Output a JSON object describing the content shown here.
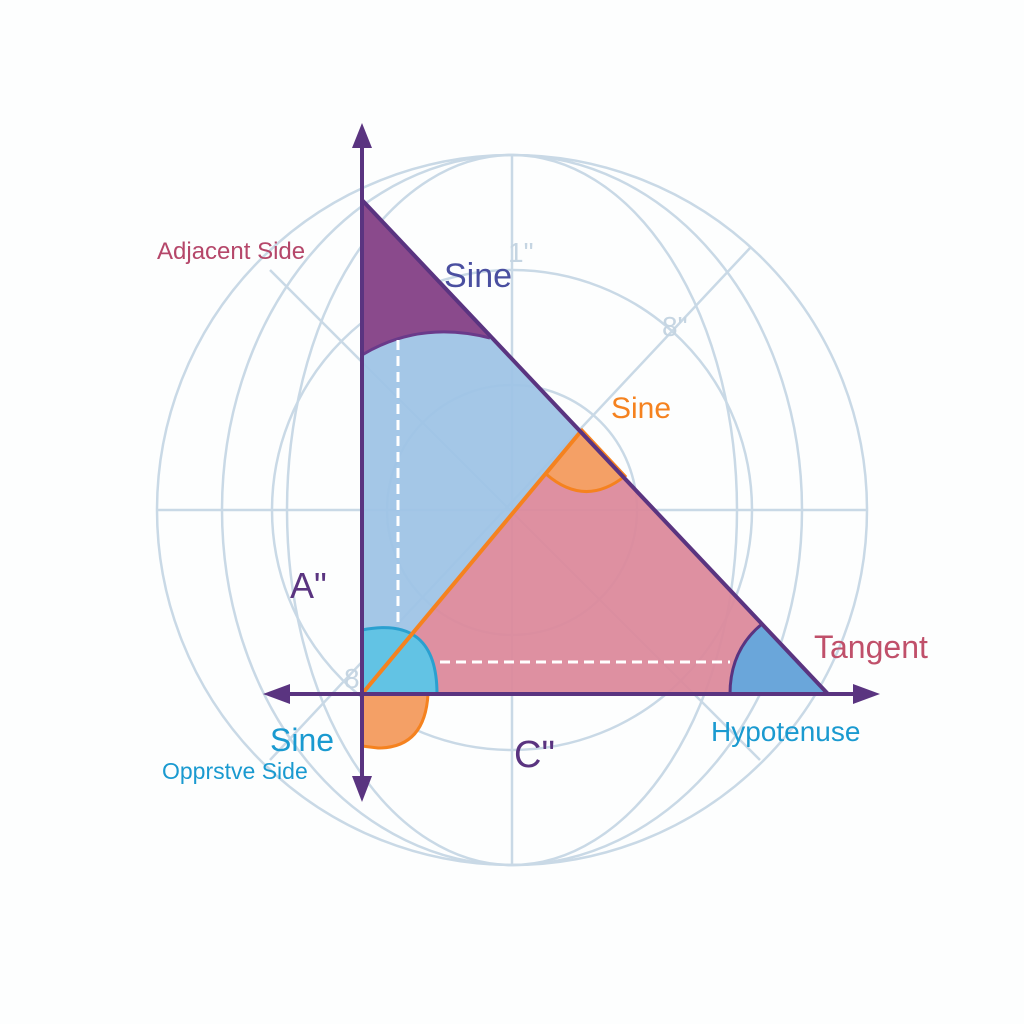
{
  "labels": {
    "adjacent_side": "Adjacent Side",
    "sine_top": "Sine",
    "mark_1": "1\"",
    "mark_8_top": "8\"",
    "sine_orange": "Sine",
    "a_label": "A\"",
    "tangent": "Tangent",
    "sine_cyan": "Sine",
    "opposite_side": "Opprstve Side",
    "c_label": "C\"",
    "hypotenuse": "Hypotenuse",
    "mark_8_left": "8"
  },
  "colors": {
    "axis": "#5a3480",
    "grid": "#c9d9e6",
    "purple_fill": "#8a4a8c",
    "blue_fill": "#9fc4e6",
    "pink_fill": "#dc8a9c",
    "orange": "#f5821f",
    "orange_fill": "#f4a066",
    "cyan_fill": "#62c3e4",
    "angle_blue": "#6aa6da",
    "adjacent_text": "#b5476a",
    "sine_text": "#4a4fa0",
    "tangent_text": "#c0506a",
    "hypotenuse_text": "#1a9ad0"
  }
}
